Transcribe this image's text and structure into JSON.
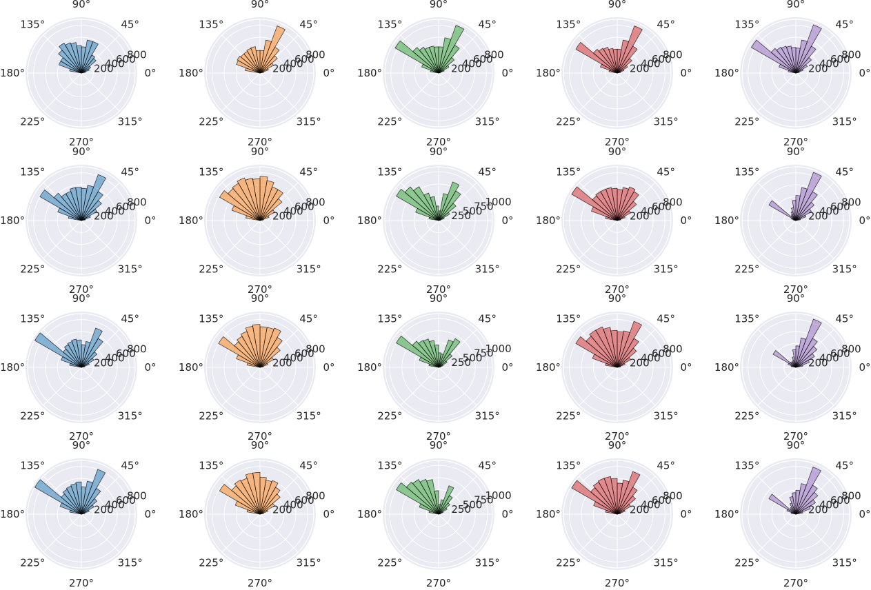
{
  "layout": {
    "rows": 4,
    "cols": 5
  },
  "colors": [
    "#1f77b4",
    "#ff7f0e",
    "#2ca02c",
    "#d62728",
    "#9467bd"
  ],
  "angle_ticks": [
    "0°",
    "45°",
    "90°",
    "135°",
    "180°",
    "225°",
    "270°",
    "315°"
  ],
  "radial_ticks": [
    {
      "r_max": 900,
      "ticks": [
        200,
        400,
        600,
        800
      ]
    },
    {
      "r_max": 1100,
      "ticks": [
        250,
        500,
        750,
        1000
      ]
    }
  ],
  "chart_data": [
    {
      "type": "bar",
      "polar": true,
      "row": 0,
      "col": 0,
      "color": "#1f77b4",
      "theta_start_deg": 0,
      "theta_end_deg": 180,
      "bin_width_deg": 10,
      "rlim": [
        0,
        900
      ],
      "radial_ticks": [
        200,
        400,
        600,
        800
      ],
      "angle_ticks": [
        "0°",
        "45°",
        "90°",
        "135°",
        "180°",
        "225°",
        "270°",
        "315°"
      ],
      "values": [
        0,
        70,
        140,
        180,
        320,
        350,
        560,
        560,
        440,
        460,
        520,
        540,
        580,
        500,
        400,
        400,
        200,
        0
      ]
    },
    {
      "type": "bar",
      "polar": true,
      "row": 0,
      "col": 1,
      "color": "#ff7f0e",
      "theta_start_deg": 0,
      "theta_end_deg": 180,
      "bin_width_deg": 10,
      "rlim": [
        0,
        900
      ],
      "radial_ticks": [
        200,
        400,
        600,
        800
      ],
      "angle_ticks": [
        "0°",
        "45°",
        "90°",
        "135°",
        "180°",
        "225°",
        "270°",
        "315°"
      ],
      "values": [
        0,
        60,
        150,
        260,
        380,
        500,
        840,
        560,
        380,
        380,
        450,
        440,
        420,
        420,
        440,
        420,
        250,
        0
      ]
    },
    {
      "type": "bar",
      "polar": true,
      "row": 0,
      "col": 2,
      "color": "#2ca02c",
      "theta_start_deg": 0,
      "theta_end_deg": 180,
      "bin_width_deg": 10,
      "rlim": [
        0,
        900
      ],
      "radial_ticks": [
        200,
        400,
        600,
        800
      ],
      "angle_ticks": [
        "0°",
        "45°",
        "90°",
        "135°",
        "180°",
        "225°",
        "270°",
        "315°"
      ],
      "values": [
        0,
        30,
        100,
        200,
        340,
        540,
        850,
        600,
        440,
        440,
        460,
        460,
        500,
        560,
        840,
        300,
        140,
        0
      ]
    },
    {
      "type": "bar",
      "polar": true,
      "row": 0,
      "col": 3,
      "color": "#d62728",
      "theta_start_deg": 0,
      "theta_end_deg": 180,
      "bin_width_deg": 10,
      "rlim": [
        0,
        900
      ],
      "radial_ticks": [
        200,
        400,
        600,
        800
      ],
      "angle_ticks": [
        "0°",
        "45°",
        "90°",
        "135°",
        "180°",
        "225°",
        "270°",
        "315°"
      ],
      "values": [
        0,
        60,
        120,
        200,
        320,
        520,
        840,
        560,
        400,
        400,
        420,
        460,
        480,
        520,
        800,
        300,
        140,
        0
      ]
    },
    {
      "type": "bar",
      "polar": true,
      "row": 0,
      "col": 4,
      "color": "#9467bd",
      "theta_start_deg": 0,
      "theta_end_deg": 180,
      "bin_width_deg": 10,
      "rlim": [
        0,
        900
      ],
      "radial_ticks": [
        200,
        400,
        600,
        800
      ],
      "angle_ticks": [
        "0°",
        "45°",
        "90°",
        "135°",
        "180°",
        "225°",
        "270°",
        "315°"
      ],
      "values": [
        0,
        60,
        130,
        220,
        340,
        520,
        860,
        560,
        420,
        430,
        460,
        480,
        500,
        540,
        860,
        300,
        130,
        0
      ]
    },
    {
      "type": "bar",
      "polar": true,
      "row": 1,
      "col": 0,
      "color": "#1f77b4",
      "theta_start_deg": 0,
      "theta_end_deg": 180,
      "bin_width_deg": 10,
      "rlim": [
        0,
        900
      ],
      "radial_ticks": [
        200,
        400,
        600,
        800
      ],
      "angle_ticks": [
        "0°",
        "45°",
        "90°",
        "135°",
        "180°",
        "225°",
        "270°",
        "315°"
      ],
      "values": [
        0,
        70,
        160,
        300,
        440,
        560,
        820,
        600,
        540,
        560,
        560,
        520,
        520,
        600,
        800,
        420,
        220,
        0
      ]
    },
    {
      "type": "bar",
      "polar": true,
      "row": 1,
      "col": 1,
      "color": "#ff7f0e",
      "theta_start_deg": 0,
      "theta_end_deg": 180,
      "bin_width_deg": 10,
      "rlim": [
        0,
        900
      ],
      "radial_ticks": [
        200,
        400,
        600,
        800
      ],
      "angle_ticks": [
        "0°",
        "45°",
        "90°",
        "135°",
        "180°",
        "225°",
        "270°",
        "315°"
      ],
      "values": [
        0,
        60,
        160,
        280,
        480,
        600,
        600,
        680,
        740,
        700,
        720,
        760,
        720,
        700,
        780,
        500,
        240,
        0
      ]
    },
    {
      "type": "bar",
      "polar": true,
      "row": 1,
      "col": 2,
      "color": "#2ca02c",
      "theta_start_deg": 0,
      "theta_end_deg": 180,
      "bin_width_deg": 10,
      "rlim": [
        0,
        1100
      ],
      "radial_ticks": [
        250,
        500,
        750,
        1000
      ],
      "angle_ticks": [
        "0°",
        "45°",
        "90°",
        "135°",
        "180°",
        "225°",
        "270°",
        "315°"
      ],
      "values": [
        0,
        40,
        120,
        260,
        460,
        700,
        840,
        560,
        200,
        300,
        500,
        600,
        800,
        900,
        1000,
        500,
        200,
        0
      ]
    },
    {
      "type": "bar",
      "polar": true,
      "row": 1,
      "col": 3,
      "color": "#d62728",
      "theta_start_deg": 0,
      "theta_end_deg": 180,
      "bin_width_deg": 10,
      "rlim": [
        0,
        900
      ],
      "radial_ticks": [
        200,
        400,
        600,
        800
      ],
      "angle_ticks": [
        "0°",
        "45°",
        "90°",
        "135°",
        "180°",
        "225°",
        "270°",
        "315°"
      ],
      "values": [
        0,
        60,
        140,
        260,
        420,
        560,
        600,
        560,
        520,
        540,
        560,
        560,
        560,
        540,
        880,
        460,
        200,
        0
      ]
    },
    {
      "type": "bar",
      "polar": true,
      "row": 1,
      "col": 4,
      "color": "#9467bd",
      "theta_start_deg": 0,
      "theta_end_deg": 180,
      "bin_width_deg": 10,
      "rlim": [
        0,
        900
      ],
      "radial_ticks": [
        200,
        400,
        600,
        800
      ],
      "angle_ticks": [
        "0°",
        "45°",
        "90°",
        "135°",
        "180°",
        "225°",
        "270°",
        "315°"
      ],
      "values": [
        0,
        80,
        180,
        300,
        400,
        560,
        860,
        560,
        420,
        340,
        220,
        160,
        120,
        100,
        520,
        80,
        40,
        0
      ]
    },
    {
      "type": "bar",
      "polar": true,
      "row": 2,
      "col": 0,
      "color": "#1f77b4",
      "theta_start_deg": 0,
      "theta_end_deg": 180,
      "bin_width_deg": 10,
      "rlim": [
        0,
        900
      ],
      "radial_ticks": [
        200,
        400,
        600,
        800
      ],
      "angle_ticks": [
        "0°",
        "45°",
        "90°",
        "135°",
        "180°",
        "225°",
        "270°",
        "315°"
      ],
      "values": [
        0,
        60,
        140,
        240,
        340,
        560,
        700,
        440,
        380,
        460,
        480,
        460,
        440,
        400,
        900,
        360,
        200,
        0
      ]
    },
    {
      "type": "bar",
      "polar": true,
      "row": 2,
      "col": 1,
      "color": "#ff7f0e",
      "theta_start_deg": 0,
      "theta_end_deg": 180,
      "bin_width_deg": 10,
      "rlim": [
        0,
        900
      ],
      "radial_ticks": [
        200,
        400,
        600,
        800
      ],
      "angle_ticks": [
        "0°",
        "45°",
        "90°",
        "135°",
        "180°",
        "225°",
        "270°",
        "315°"
      ],
      "values": [
        0,
        60,
        140,
        260,
        440,
        580,
        700,
        680,
        680,
        720,
        700,
        640,
        600,
        560,
        800,
        420,
        220,
        0
      ]
    },
    {
      "type": "bar",
      "polar": true,
      "row": 2,
      "col": 2,
      "color": "#2ca02c",
      "theta_start_deg": 0,
      "theta_end_deg": 180,
      "bin_width_deg": 10,
      "rlim": [
        0,
        1100
      ],
      "radial_ticks": [
        250,
        500,
        750,
        1000
      ],
      "angle_ticks": [
        "0°",
        "45°",
        "90°",
        "135°",
        "180°",
        "225°",
        "270°",
        "315°"
      ],
      "values": [
        0,
        40,
        100,
        200,
        360,
        680,
        600,
        280,
        300,
        460,
        560,
        620,
        640,
        700,
        1000,
        420,
        200,
        0
      ]
    },
    {
      "type": "bar",
      "polar": true,
      "row": 2,
      "col": 3,
      "color": "#d62728",
      "theta_start_deg": 0,
      "theta_end_deg": 180,
      "bin_width_deg": 10,
      "rlim": [
        0,
        900
      ],
      "radial_ticks": [
        200,
        400,
        600,
        800
      ],
      "angle_ticks": [
        "0°",
        "45°",
        "90°",
        "135°",
        "180°",
        "225°",
        "270°",
        "315°"
      ],
      "values": [
        0,
        60,
        140,
        260,
        420,
        560,
        820,
        620,
        600,
        620,
        680,
        720,
        720,
        680,
        800,
        440,
        200,
        0
      ]
    },
    {
      "type": "bar",
      "polar": true,
      "row": 2,
      "col": 4,
      "color": "#9467bd",
      "theta_start_deg": 0,
      "theta_end_deg": 180,
      "bin_width_deg": 10,
      "rlim": [
        0,
        900
      ],
      "radial_ticks": [
        200,
        400,
        600,
        800
      ],
      "angle_ticks": [
        "0°",
        "45°",
        "90°",
        "135°",
        "180°",
        "225°",
        "270°",
        "315°"
      ],
      "values": [
        0,
        120,
        240,
        360,
        460,
        560,
        860,
        500,
        360,
        300,
        180,
        120,
        100,
        120,
        440,
        140,
        80,
        0
      ]
    },
    {
      "type": "bar",
      "polar": true,
      "row": 3,
      "col": 0,
      "color": "#1f77b4",
      "theta_start_deg": 0,
      "theta_end_deg": 180,
      "bin_width_deg": 10,
      "rlim": [
        0,
        900
      ],
      "radial_ticks": [
        200,
        400,
        600,
        800
      ],
      "angle_ticks": [
        "0°",
        "45°",
        "90°",
        "135°",
        "180°",
        "225°",
        "270°",
        "315°"
      ],
      "values": [
        0,
        60,
        140,
        240,
        340,
        500,
        800,
        560,
        460,
        540,
        520,
        500,
        480,
        440,
        900,
        380,
        200,
        0
      ]
    },
    {
      "type": "bar",
      "polar": true,
      "row": 3,
      "col": 1,
      "color": "#ff7f0e",
      "theta_start_deg": 0,
      "theta_end_deg": 180,
      "bin_width_deg": 10,
      "rlim": [
        0,
        900
      ],
      "radial_ticks": [
        200,
        400,
        600,
        800
      ],
      "angle_ticks": [
        "0°",
        "45°",
        "90°",
        "135°",
        "180°",
        "225°",
        "270°",
        "315°"
      ],
      "values": [
        0,
        60,
        140,
        280,
        440,
        520,
        600,
        580,
        620,
        700,
        700,
        640,
        660,
        620,
        780,
        440,
        220,
        0
      ]
    },
    {
      "type": "bar",
      "polar": true,
      "row": 3,
      "col": 2,
      "color": "#2ca02c",
      "theta_start_deg": 0,
      "theta_end_deg": 180,
      "bin_width_deg": 10,
      "rlim": [
        0,
        1100
      ],
      "radial_ticks": [
        250,
        500,
        750,
        1000
      ],
      "angle_ticks": [
        "0°",
        "45°",
        "90°",
        "135°",
        "180°",
        "225°",
        "270°",
        "315°"
      ],
      "values": [
        0,
        40,
        100,
        200,
        300,
        440,
        620,
        300,
        200,
        480,
        720,
        760,
        820,
        860,
        1000,
        420,
        200,
        0
      ]
    },
    {
      "type": "bar",
      "polar": true,
      "row": 3,
      "col": 3,
      "color": "#d62728",
      "theta_start_deg": 0,
      "theta_end_deg": 180,
      "bin_width_deg": 10,
      "rlim": [
        0,
        900
      ],
      "radial_ticks": [
        200,
        400,
        600,
        800
      ],
      "angle_ticks": [
        "0°",
        "45°",
        "90°",
        "135°",
        "180°",
        "225°",
        "270°",
        "315°"
      ],
      "values": [
        0,
        60,
        140,
        260,
        400,
        520,
        760,
        580,
        520,
        600,
        640,
        640,
        620,
        580,
        880,
        420,
        200,
        0
      ]
    },
    {
      "type": "bar",
      "polar": true,
      "row": 3,
      "col": 4,
      "color": "#9467bd",
      "theta_start_deg": 0,
      "theta_end_deg": 180,
      "bin_width_deg": 10,
      "rlim": [
        0,
        900
      ],
      "radial_ticks": [
        200,
        400,
        600,
        800
      ],
      "angle_ticks": [
        "0°",
        "45°",
        "90°",
        "135°",
        "180°",
        "225°",
        "270°",
        "315°"
      ],
      "values": [
        0,
        120,
        260,
        380,
        480,
        560,
        840,
        520,
        400,
        360,
        300,
        200,
        140,
        120,
        520,
        160,
        80,
        0
      ]
    }
  ]
}
